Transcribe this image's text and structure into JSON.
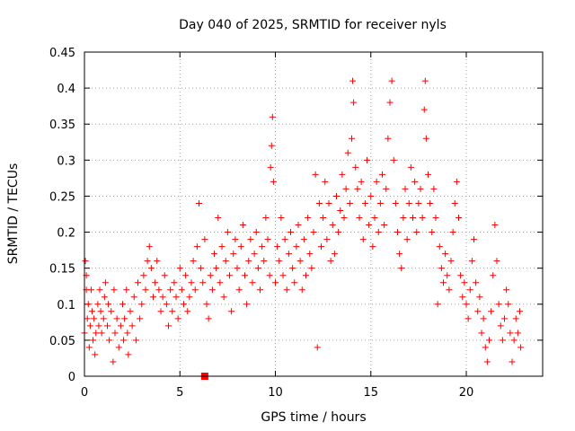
{
  "chart_data": {
    "type": "scatter",
    "title": "Day 040 of 2025, SRMTID for receiver nyls",
    "xlabel": "GPS time / hours",
    "ylabel": "SRMTID / TECUs",
    "xlim": [
      0,
      24
    ],
    "ylim": [
      0,
      0.45
    ],
    "xticks": [
      0,
      5,
      10,
      15,
      20
    ],
    "xtick_labels": [
      "0",
      "5",
      "10",
      "15",
      "20"
    ],
    "yticks": [
      0,
      0.05,
      0.1,
      0.15,
      0.2,
      0.25,
      0.3,
      0.35,
      0.4,
      0.45
    ],
    "ytick_labels": [
      "0",
      "0.05",
      "0.1",
      "0.15",
      "0.2",
      "0.25",
      "0.3",
      "0.35",
      "0.4",
      "0.45"
    ],
    "grid": true,
    "marker": "plus",
    "series_color": "#ff0000",
    "marker_square": {
      "x": 6.3,
      "y": 0.0
    },
    "series": [
      {
        "name": "SRMTID",
        "points": [
          [
            0.0,
            0.06
          ],
          [
            0.05,
            0.16
          ],
          [
            0.1,
            0.14
          ],
          [
            0.1,
            0.12
          ],
          [
            0.15,
            0.08
          ],
          [
            0.2,
            0.1
          ],
          [
            0.25,
            0.04
          ],
          [
            0.3,
            0.07
          ],
          [
            0.35,
            0.12
          ],
          [
            0.4,
            0.09
          ],
          [
            0.45,
            0.05
          ],
          [
            0.5,
            0.08
          ],
          [
            0.55,
            0.03
          ],
          [
            0.6,
            0.06
          ],
          [
            0.7,
            0.1
          ],
          [
            0.75,
            0.07
          ],
          [
            0.8,
            0.12
          ],
          [
            0.85,
            0.09
          ],
          [
            0.9,
            0.06
          ],
          [
            1.0,
            0.08
          ],
          [
            1.05,
            0.11
          ],
          [
            1.1,
            0.13
          ],
          [
            1.2,
            0.07
          ],
          [
            1.25,
            0.1
          ],
          [
            1.3,
            0.05
          ],
          [
            1.4,
            0.09
          ],
          [
            1.5,
            0.02
          ],
          [
            1.55,
            0.12
          ],
          [
            1.6,
            0.06
          ],
          [
            1.7,
            0.08
          ],
          [
            1.8,
            0.04
          ],
          [
            1.9,
            0.07
          ],
          [
            2.0,
            0.1
          ],
          [
            2.05,
            0.05
          ],
          [
            2.1,
            0.08
          ],
          [
            2.2,
            0.12
          ],
          [
            2.25,
            0.06
          ],
          [
            2.3,
            0.03
          ],
          [
            2.4,
            0.09
          ],
          [
            2.5,
            0.07
          ],
          [
            2.6,
            0.11
          ],
          [
            2.7,
            0.05
          ],
          [
            2.8,
            0.13
          ],
          [
            2.9,
            0.08
          ],
          [
            3.0,
            0.1
          ],
          [
            3.1,
            0.14
          ],
          [
            3.2,
            0.12
          ],
          [
            3.3,
            0.16
          ],
          [
            3.4,
            0.18
          ],
          [
            3.5,
            0.15
          ],
          [
            3.6,
            0.11
          ],
          [
            3.7,
            0.13
          ],
          [
            3.8,
            0.16
          ],
          [
            3.9,
            0.12
          ],
          [
            4.0,
            0.09
          ],
          [
            4.1,
            0.11
          ],
          [
            4.2,
            0.14
          ],
          [
            4.3,
            0.1
          ],
          [
            4.4,
            0.07
          ],
          [
            4.5,
            0.12
          ],
          [
            4.6,
            0.09
          ],
          [
            4.7,
            0.13
          ],
          [
            4.8,
            0.11
          ],
          [
            4.9,
            0.08
          ],
          [
            5.0,
            0.15
          ],
          [
            5.1,
            0.12
          ],
          [
            5.2,
            0.1
          ],
          [
            5.3,
            0.14
          ],
          [
            5.4,
            0.09
          ],
          [
            5.5,
            0.11
          ],
          [
            5.6,
            0.13
          ],
          [
            5.7,
            0.16
          ],
          [
            5.8,
            0.12
          ],
          [
            5.9,
            0.18
          ],
          [
            6.0,
            0.24
          ],
          [
            6.1,
            0.15
          ],
          [
            6.2,
            0.13
          ],
          [
            6.3,
            0.19
          ],
          [
            6.4,
            0.1
          ],
          [
            6.5,
            0.08
          ],
          [
            6.6,
            0.14
          ],
          [
            6.7,
            0.12
          ],
          [
            6.8,
            0.17
          ],
          [
            6.9,
            0.15
          ],
          [
            7.0,
            0.22
          ],
          [
            7.1,
            0.13
          ],
          [
            7.2,
            0.18
          ],
          [
            7.3,
            0.11
          ],
          [
            7.4,
            0.16
          ],
          [
            7.5,
            0.2
          ],
          [
            7.6,
            0.14
          ],
          [
            7.7,
            0.09
          ],
          [
            7.8,
            0.17
          ],
          [
            7.9,
            0.19
          ],
          [
            8.0,
            0.15
          ],
          [
            8.1,
            0.12
          ],
          [
            8.2,
            0.18
          ],
          [
            8.3,
            0.21
          ],
          [
            8.4,
            0.14
          ],
          [
            8.5,
            0.1
          ],
          [
            8.6,
            0.16
          ],
          [
            8.7,
            0.19
          ],
          [
            8.8,
            0.13
          ],
          [
            8.9,
            0.17
          ],
          [
            9.0,
            0.2
          ],
          [
            9.1,
            0.15
          ],
          [
            9.2,
            0.12
          ],
          [
            9.3,
            0.18
          ],
          [
            9.4,
            0.16
          ],
          [
            9.5,
            0.22
          ],
          [
            9.6,
            0.19
          ],
          [
            9.7,
            0.14
          ],
          [
            9.75,
            0.29
          ],
          [
            9.8,
            0.32
          ],
          [
            9.85,
            0.36
          ],
          [
            9.9,
            0.27
          ],
          [
            10.0,
            0.13
          ],
          [
            10.1,
            0.18
          ],
          [
            10.2,
            0.16
          ],
          [
            10.3,
            0.22
          ],
          [
            10.4,
            0.14
          ],
          [
            10.5,
            0.19
          ],
          [
            10.6,
            0.12
          ],
          [
            10.7,
            0.17
          ],
          [
            10.8,
            0.2
          ],
          [
            10.9,
            0.15
          ],
          [
            11.0,
            0.13
          ],
          [
            11.1,
            0.18
          ],
          [
            11.2,
            0.21
          ],
          [
            11.3,
            0.16
          ],
          [
            11.4,
            0.12
          ],
          [
            11.5,
            0.19
          ],
          [
            11.6,
            0.14
          ],
          [
            11.7,
            0.22
          ],
          [
            11.8,
            0.17
          ],
          [
            11.9,
            0.15
          ],
          [
            12.0,
            0.2
          ],
          [
            12.1,
            0.28
          ],
          [
            12.2,
            0.04
          ],
          [
            12.3,
            0.24
          ],
          [
            12.4,
            0.18
          ],
          [
            12.5,
            0.22
          ],
          [
            12.6,
            0.27
          ],
          [
            12.7,
            0.19
          ],
          [
            12.8,
            0.24
          ],
          [
            12.9,
            0.16
          ],
          [
            13.0,
            0.21
          ],
          [
            13.1,
            0.17
          ],
          [
            13.2,
            0.25
          ],
          [
            13.3,
            0.2
          ],
          [
            13.4,
            0.23
          ],
          [
            13.5,
            0.28
          ],
          [
            13.6,
            0.22
          ],
          [
            13.7,
            0.26
          ],
          [
            13.8,
            0.31
          ],
          [
            13.9,
            0.24
          ],
          [
            14.0,
            0.33
          ],
          [
            14.05,
            0.41
          ],
          [
            14.1,
            0.38
          ],
          [
            14.2,
            0.29
          ],
          [
            14.3,
            0.26
          ],
          [
            14.4,
            0.22
          ],
          [
            14.5,
            0.27
          ],
          [
            14.6,
            0.19
          ],
          [
            14.7,
            0.24
          ],
          [
            14.8,
            0.3
          ],
          [
            14.9,
            0.21
          ],
          [
            15.0,
            0.25
          ],
          [
            15.1,
            0.18
          ],
          [
            15.2,
            0.22
          ],
          [
            15.3,
            0.27
          ],
          [
            15.4,
            0.2
          ],
          [
            15.5,
            0.24
          ],
          [
            15.6,
            0.28
          ],
          [
            15.7,
            0.21
          ],
          [
            15.8,
            0.26
          ],
          [
            15.9,
            0.33
          ],
          [
            16.0,
            0.38
          ],
          [
            16.1,
            0.41
          ],
          [
            16.2,
            0.3
          ],
          [
            16.3,
            0.24
          ],
          [
            16.4,
            0.2
          ],
          [
            16.5,
            0.17
          ],
          [
            16.6,
            0.15
          ],
          [
            16.7,
            0.22
          ],
          [
            16.8,
            0.26
          ],
          [
            16.9,
            0.19
          ],
          [
            17.0,
            0.24
          ],
          [
            17.1,
            0.29
          ],
          [
            17.2,
            0.22
          ],
          [
            17.3,
            0.27
          ],
          [
            17.4,
            0.2
          ],
          [
            17.5,
            0.24
          ],
          [
            17.6,
            0.26
          ],
          [
            17.7,
            0.22
          ],
          [
            17.8,
            0.37
          ],
          [
            17.85,
            0.41
          ],
          [
            17.9,
            0.33
          ],
          [
            18.0,
            0.28
          ],
          [
            18.1,
            0.24
          ],
          [
            18.2,
            0.2
          ],
          [
            18.3,
            0.26
          ],
          [
            18.4,
            0.22
          ],
          [
            18.5,
            0.1
          ],
          [
            18.6,
            0.18
          ],
          [
            18.7,
            0.15
          ],
          [
            18.8,
            0.13
          ],
          [
            18.9,
            0.17
          ],
          [
            19.0,
            0.14
          ],
          [
            19.1,
            0.12
          ],
          [
            19.2,
            0.16
          ],
          [
            19.3,
            0.2
          ],
          [
            19.4,
            0.24
          ],
          [
            19.5,
            0.27
          ],
          [
            19.6,
            0.22
          ],
          [
            19.7,
            0.14
          ],
          [
            19.8,
            0.11
          ],
          [
            19.9,
            0.13
          ],
          [
            20.0,
            0.1
          ],
          [
            20.1,
            0.08
          ],
          [
            20.2,
            0.12
          ],
          [
            20.3,
            0.16
          ],
          [
            20.4,
            0.19
          ],
          [
            20.5,
            0.13
          ],
          [
            20.6,
            0.09
          ],
          [
            20.7,
            0.11
          ],
          [
            20.8,
            0.06
          ],
          [
            20.9,
            0.08
          ],
          [
            21.0,
            0.04
          ],
          [
            21.1,
            0.02
          ],
          [
            21.2,
            0.05
          ],
          [
            21.3,
            0.09
          ],
          [
            21.4,
            0.14
          ],
          [
            21.5,
            0.21
          ],
          [
            21.6,
            0.16
          ],
          [
            21.7,
            0.1
          ],
          [
            21.8,
            0.07
          ],
          [
            21.9,
            0.05
          ],
          [
            22.0,
            0.08
          ],
          [
            22.1,
            0.12
          ],
          [
            22.2,
            0.1
          ],
          [
            22.3,
            0.06
          ],
          [
            22.4,
            0.02
          ],
          [
            22.5,
            0.05
          ],
          [
            22.6,
            0.08
          ],
          [
            22.7,
            0.06
          ],
          [
            22.8,
            0.09
          ],
          [
            22.85,
            0.04
          ]
        ]
      }
    ]
  }
}
